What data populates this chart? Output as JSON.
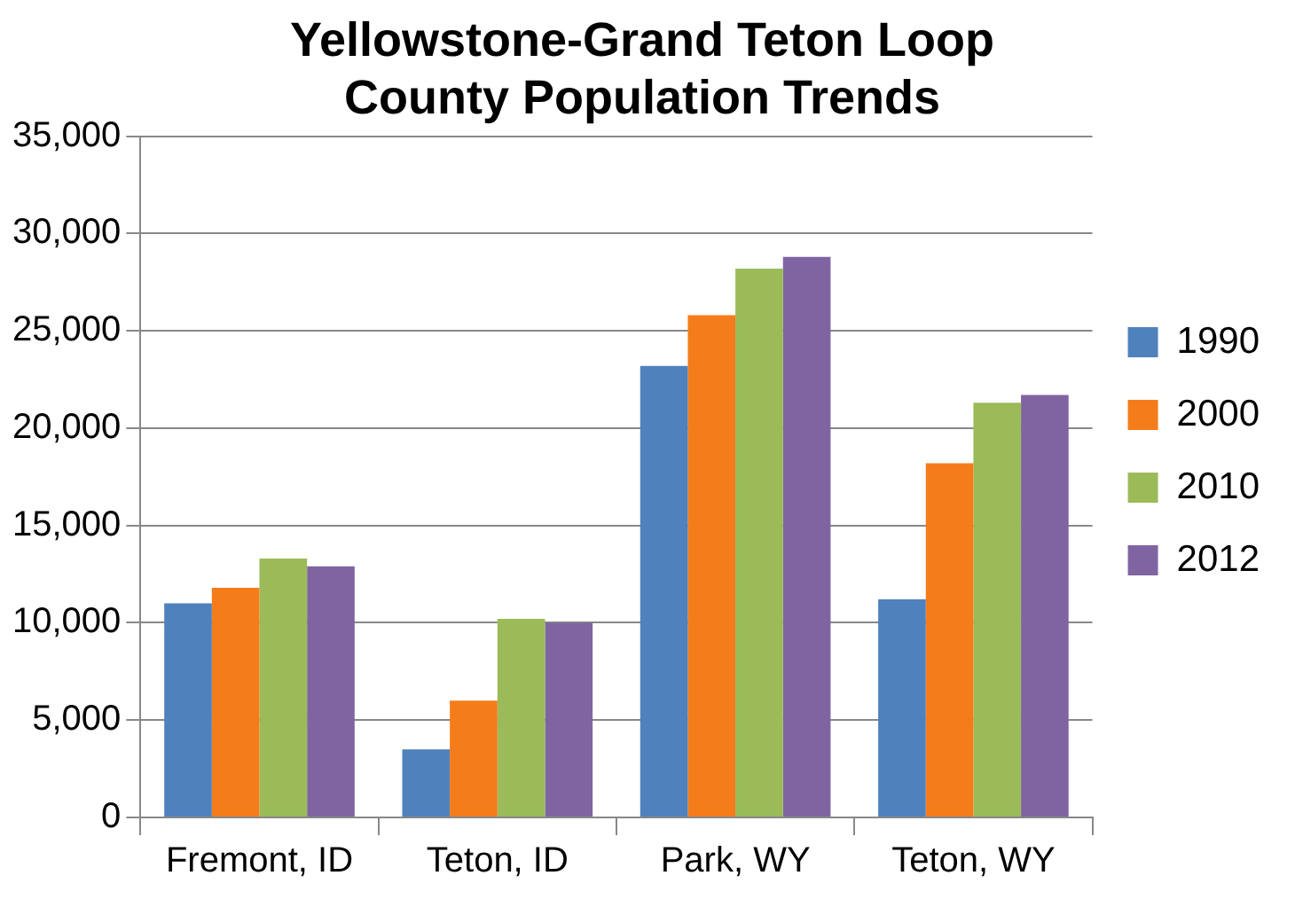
{
  "chart_data": {
    "type": "bar",
    "title": [
      "Yellowstone-Grand Teton Loop",
      "County Population Trends"
    ],
    "categories": [
      "Fremont, ID",
      "Teton, ID",
      "Park, WY",
      "Teton, WY"
    ],
    "series": [
      {
        "name": "1990",
        "color": "#4f81bd",
        "values": [
          11000,
          3500,
          23200,
          11200
        ]
      },
      {
        "name": "2000",
        "color": "#f47c1b",
        "values": [
          11800,
          6000,
          25800,
          18200
        ]
      },
      {
        "name": "2010",
        "color": "#9bbb59",
        "values": [
          13300,
          10200,
          28200,
          21300
        ]
      },
      {
        "name": "2012",
        "color": "#8064a2",
        "values": [
          12900,
          10000,
          28800,
          21700
        ]
      }
    ],
    "ylim": [
      0,
      35000
    ],
    "yticks": [
      0,
      {
        "value": 5000,
        "label": "5,000"
      },
      {
        "value": 10000,
        "label": "10,000"
      },
      {
        "value": 15000,
        "label": "15,000"
      },
      {
        "value": 20000,
        "label": "20,000"
      },
      {
        "value": 25000,
        "label": "25,000"
      },
      {
        "value": 30000,
        "label": "30,000"
      },
      {
        "value": 35000,
        "label": "35,000"
      }
    ],
    "grid": "y",
    "legend": "right"
  }
}
